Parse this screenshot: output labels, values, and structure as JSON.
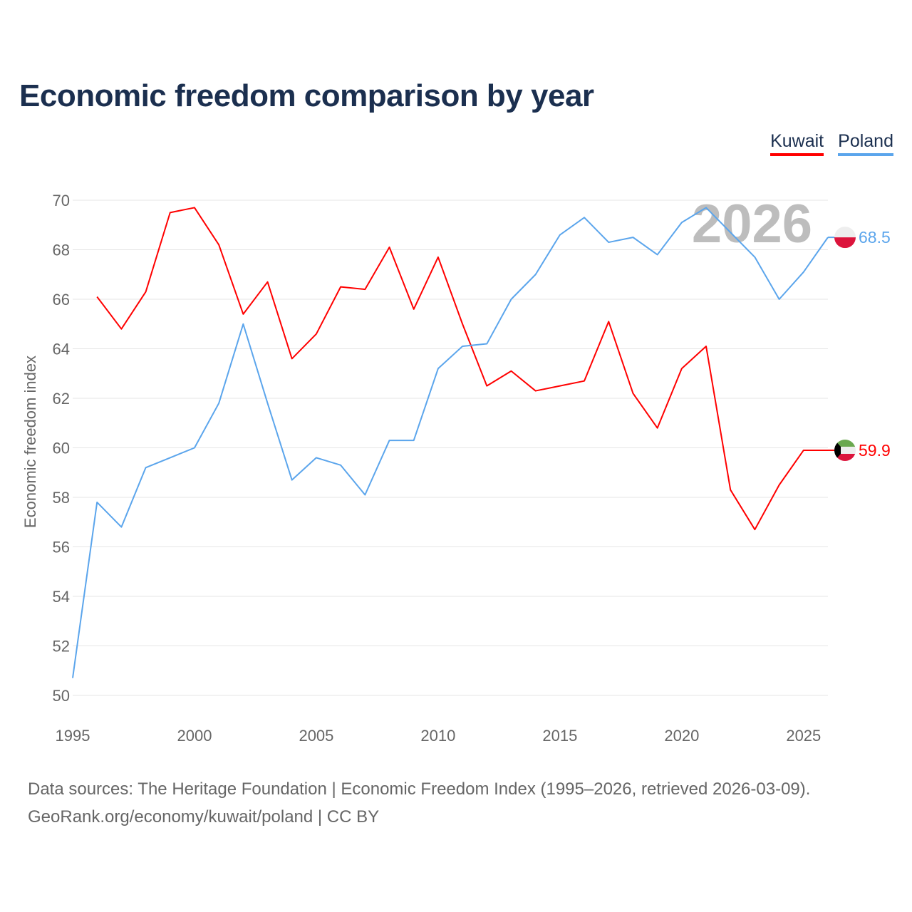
{
  "title": "Economic freedom comparison by year",
  "legend": [
    {
      "label": "Kuwait",
      "color": "#ff0000"
    },
    {
      "label": "Poland",
      "color": "#5ba5ec"
    }
  ],
  "source_line1": "Data sources: The Heritage Foundation | Economic Freedom Index (1995–2026, retrieved 2026-03-09).",
  "source_line2": "GeoRank.org/economy/kuwait/poland | CC BY",
  "chart_data": {
    "type": "line",
    "title": "Economic freedom comparison by year",
    "ylabel": "Economic freedom index",
    "xlabel": "",
    "xlim": [
      1995,
      2026
    ],
    "ylim": [
      50,
      70
    ],
    "xticks": [
      1995,
      2000,
      2005,
      2010,
      2015,
      2020,
      2025
    ],
    "yticks": [
      50,
      52,
      54,
      56,
      58,
      60,
      62,
      64,
      66,
      68,
      70
    ],
    "grid": true,
    "year_watermark": "2026",
    "legend_position": "top-right",
    "series": [
      {
        "name": "Kuwait",
        "color": "#ff0000",
        "end_label": "59.9",
        "flag": "kuwait",
        "x": [
          1996,
          1997,
          1998,
          1999,
          2000,
          2001,
          2002,
          2003,
          2004,
          2005,
          2006,
          2007,
          2008,
          2009,
          2010,
          2011,
          2012,
          2013,
          2014,
          2015,
          2016,
          2017,
          2018,
          2019,
          2020,
          2021,
          2022,
          2023,
          2024,
          2025,
          2026
        ],
        "values": [
          66.1,
          64.8,
          66.3,
          69.5,
          69.7,
          68.2,
          65.4,
          66.7,
          63.6,
          64.6,
          66.5,
          66.4,
          68.1,
          65.6,
          67.7,
          65.0,
          62.5,
          63.1,
          62.3,
          62.5,
          62.7,
          65.1,
          62.2,
          60.8,
          63.2,
          64.1,
          58.3,
          56.7,
          58.5,
          59.9,
          59.9
        ]
      },
      {
        "name": "Poland",
        "color": "#5ba5ec",
        "end_label": "68.5",
        "flag": "poland",
        "x": [
          1995,
          1996,
          1997,
          1998,
          1999,
          2000,
          2001,
          2002,
          2003,
          2004,
          2005,
          2006,
          2007,
          2008,
          2009,
          2010,
          2011,
          2012,
          2013,
          2014,
          2015,
          2016,
          2017,
          2018,
          2019,
          2020,
          2021,
          2022,
          2023,
          2024,
          2025,
          2026
        ],
        "values": [
          50.7,
          57.8,
          56.8,
          59.2,
          59.6,
          60.0,
          61.8,
          65.0,
          61.8,
          58.7,
          59.6,
          59.3,
          58.1,
          60.3,
          60.3,
          63.2,
          64.1,
          64.2,
          66.0,
          67.0,
          68.6,
          69.3,
          68.3,
          68.5,
          67.8,
          69.1,
          69.7,
          68.7,
          67.7,
          66.0,
          67.1,
          68.5
        ]
      }
    ]
  }
}
